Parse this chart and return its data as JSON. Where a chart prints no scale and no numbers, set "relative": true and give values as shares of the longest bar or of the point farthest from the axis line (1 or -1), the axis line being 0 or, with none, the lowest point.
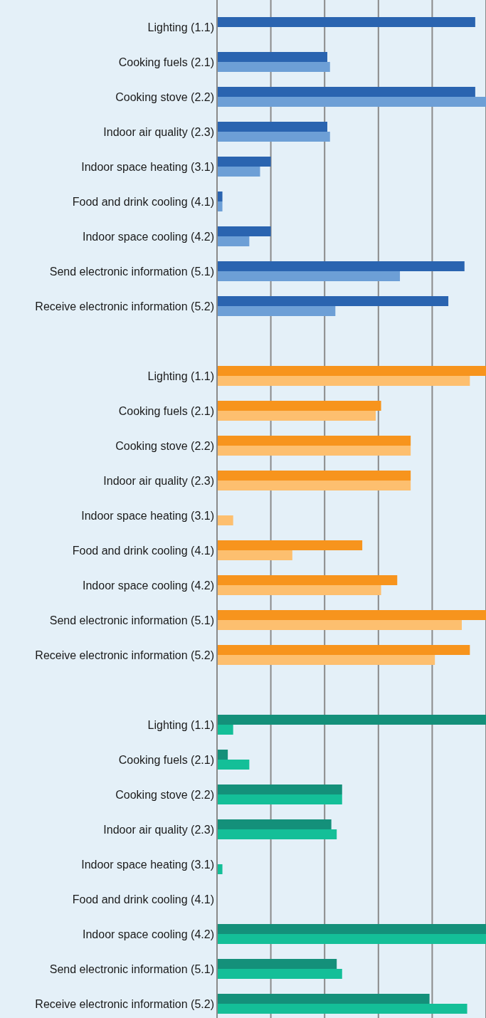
{
  "chart_data": [
    {
      "type": "bar",
      "orientation": "horizontal",
      "relative": true,
      "grid": "x",
      "categories": [
        "Lighting (1.1)",
        "Cooking fuels (2.1)",
        "Cooking stove (2.2)",
        "Indoor air quality (2.3)",
        "Indoor space heating (3.1)",
        "Food and drink cooling (4.1)",
        "Indoor space cooling (4.2)",
        "Send electronic information (5.1)",
        "Receive electronic information (5.2)"
      ],
      "series": [
        {
          "color": "#2a64b0",
          "values": [
            0.96,
            0.41,
            0.96,
            0.41,
            0.2,
            0.02,
            0.2,
            0.92,
            0.86
          ]
        },
        {
          "color": "#6d9fd6",
          "values": [
            null,
            0.42,
            1,
            0.42,
            0.16,
            0.02,
            0.12,
            0.68,
            0.44
          ]
        }
      ]
    },
    {
      "type": "bar",
      "orientation": "horizontal",
      "relative": true,
      "grid": "x",
      "categories": [
        "Lighting (1.1)",
        "Cooking fuels (2.1)",
        "Cooking stove (2.2)",
        "Indoor air quality (2.3)",
        "Indoor space heating (3.1)",
        "Food and drink cooling (4.1)",
        "Indoor space cooling (4.2)",
        "Send electronic information (5.1)",
        "Receive electronic information (5.2)"
      ],
      "series": [
        {
          "color": "#f7941d",
          "values": [
            1,
            0.61,
            0.72,
            0.72,
            null,
            0.54,
            0.67,
            1,
            0.94
          ]
        },
        {
          "color": "#fdbf6f",
          "values": [
            0.94,
            0.59,
            0.72,
            0.72,
            0.06,
            0.28,
            0.61,
            0.91,
            0.81
          ]
        }
      ]
    },
    {
      "type": "bar",
      "orientation": "horizontal",
      "relative": true,
      "grid": "x",
      "categories": [
        "Lighting (1.1)",
        "Cooking fuels (2.1)",
        "Cooking stove (2.2)",
        "Indoor air quality (2.3)",
        "Indoor space heating (3.1)",
        "Food and drink cooling (4.1)",
        "Indoor space cooling (4.2)",
        "Send electronic information (5.1)",
        "Receive electronic information (5.2)"
      ],
      "series": [
        {
          "color": "#14907a",
          "values": [
            1,
            0.04,
            0.465,
            0.425,
            null,
            null,
            1,
            0.445,
            0.79
          ]
        },
        {
          "color": "#14bf98",
          "values": [
            0.06,
            0.12,
            0.465,
            0.445,
            0.02,
            null,
            1,
            0.465,
            0.93
          ]
        }
      ]
    }
  ]
}
